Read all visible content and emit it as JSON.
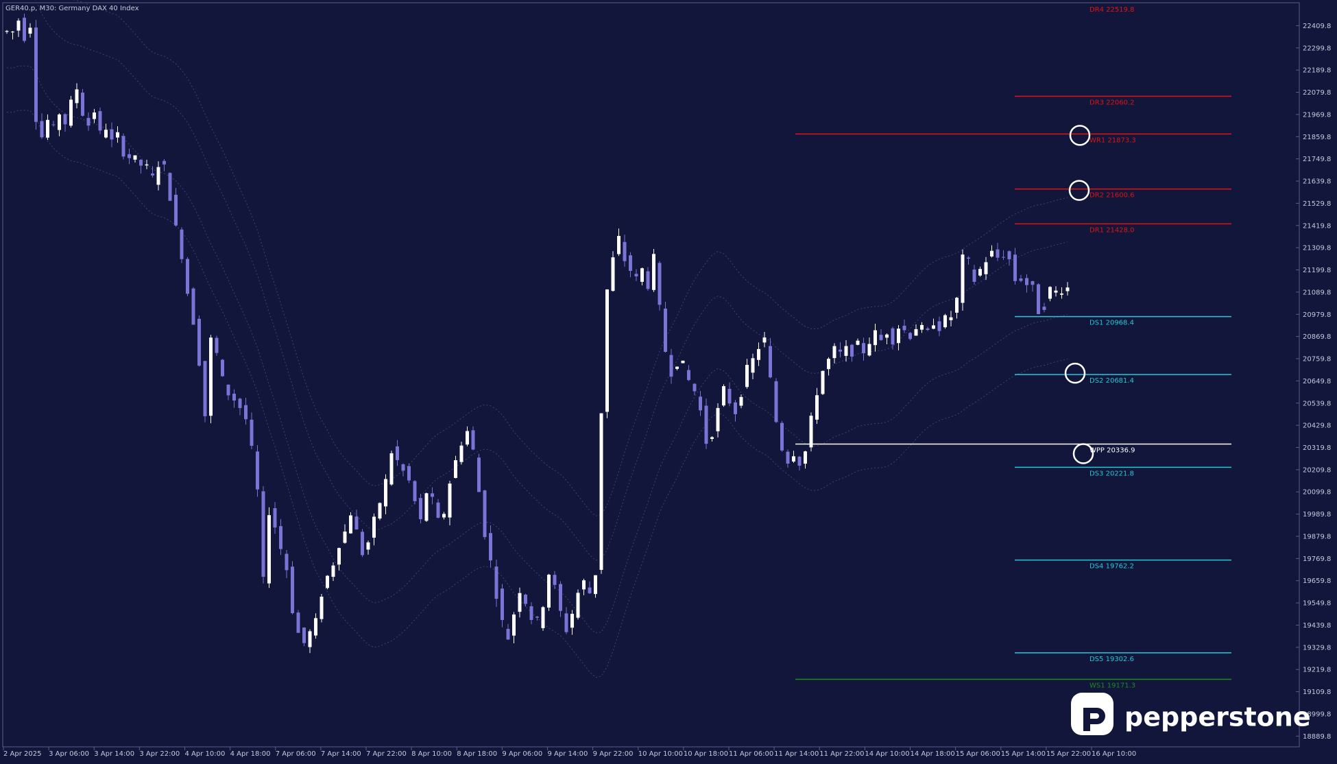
{
  "header": {
    "title": "GER40.p, M30:  Germany DAX 40 Index"
  },
  "brand": {
    "name": "pepperstone"
  },
  "colors": {
    "background": "#12163a",
    "frame": "#5a5f86",
    "axis_text": "#c8cadc",
    "bull_candle": "#ffffff",
    "bear_candle": "#7b73d6",
    "envelope": "#3d4475",
    "resistance": "#e01414",
    "support": "#22c9d6",
    "pivot": "#ffffff",
    "weekly_support": "#1f8a1f"
  },
  "chart_data": {
    "type": "candlestick",
    "symbol": "GER40.p",
    "timeframe": "M30",
    "instrument": "Germany DAX 40 Index",
    "x_tick_labels": [
      "2 Apr 2025",
      "3 Apr 06:00",
      "3 Apr 14:00",
      "3 Apr 22:00",
      "4 Apr 10:00",
      "4 Apr 18:00",
      "7 Apr 06:00",
      "7 Apr 14:00",
      "7 Apr 22:00",
      "8 Apr 10:00",
      "8 Apr 18:00",
      "9 Apr 06:00",
      "9 Apr 14:00",
      "9 Apr 22:00",
      "10 Apr 10:00",
      "10 Apr 18:00",
      "11 Apr 06:00",
      "11 Apr 14:00",
      "11 Apr 22:00",
      "14 Apr 10:00",
      "14 Apr 18:00",
      "15 Apr 06:00",
      "15 Apr 14:00",
      "15 Apr 22:00",
      "16 Apr 10:00"
    ],
    "y_tick_labels": [
      "22409.8",
      "22299.8",
      "22189.8",
      "22079.8",
      "21969.8",
      "21859.8",
      "21749.8",
      "21639.8",
      "21529.8",
      "21419.8",
      "21309.8",
      "21199.8",
      "21089.8",
      "20979.8",
      "20869.8",
      "20759.8",
      "20649.8",
      "20539.8",
      "20429.8",
      "20319.8",
      "20209.8",
      "20099.8",
      "19989.8",
      "19879.8",
      "19769.8",
      "19659.8",
      "19549.8",
      "19439.8",
      "19329.8",
      "19219.8",
      "19109.8",
      "18999.8",
      "18889.8"
    ],
    "ylim": [
      18840,
      22520
    ],
    "price_path": [
      [
        0,
        22380
      ],
      [
        2,
        22380
      ],
      [
        3,
        22440
      ],
      [
        4,
        22360
      ],
      [
        5,
        22420
      ],
      [
        6,
        21960
      ],
      [
        7,
        21860
      ],
      [
        8,
        21940
      ],
      [
        9,
        21890
      ],
      [
        10,
        21980
      ],
      [
        11,
        21930
      ],
      [
        12,
        22020
      ],
      [
        13,
        22100
      ],
      [
        14,
        21980
      ],
      [
        15,
        21920
      ],
      [
        16,
        21990
      ],
      [
        17,
        21870
      ],
      [
        18,
        21910
      ],
      [
        19,
        21830
      ],
      [
        20,
        21860
      ],
      [
        21,
        21790
      ],
      [
        22,
        21760
      ],
      [
        23,
        21740
      ],
      [
        24,
        21720
      ],
      [
        25,
        21700
      ],
      [
        26,
        21650
      ],
      [
        27,
        21730
      ],
      [
        28,
        21700
      ],
      [
        29,
        21570
      ],
      [
        30,
        21400
      ],
      [
        31,
        21280
      ],
      [
        32,
        21090
      ],
      [
        33,
        20950
      ],
      [
        34,
        20750
      ],
      [
        35,
        20480
      ],
      [
        36,
        20850
      ],
      [
        37,
        20780
      ],
      [
        38,
        20650
      ],
      [
        39,
        20590
      ],
      [
        40,
        20560
      ],
      [
        41,
        20520
      ],
      [
        42,
        20460
      ],
      [
        43,
        20300
      ],
      [
        44,
        20100
      ],
      [
        45,
        19650
      ],
      [
        46,
        20010
      ],
      [
        47,
        19930
      ],
      [
        48,
        19820
      ],
      [
        49,
        19720
      ],
      [
        50,
        19520
      ],
      [
        51,
        19400
      ],
      [
        52,
        19350
      ],
      [
        53,
        19400
      ],
      [
        54,
        19450
      ],
      [
        55,
        19600
      ],
      [
        56,
        19680
      ],
      [
        57,
        19750
      ],
      [
        58,
        19850
      ],
      [
        59,
        19900
      ],
      [
        60,
        20000
      ],
      [
        61,
        19900
      ],
      [
        62,
        19800
      ],
      [
        63,
        19850
      ],
      [
        64,
        19950
      ],
      [
        65,
        20050
      ],
      [
        66,
        20150
      ],
      [
        67,
        20300
      ],
      [
        68,
        20250
      ],
      [
        69,
        20200
      ],
      [
        70,
        20150
      ],
      [
        71,
        20050
      ],
      [
        72,
        19950
      ],
      [
        73,
        20100
      ],
      [
        74,
        20050
      ],
      [
        75,
        19950
      ],
      [
        76,
        20000
      ],
      [
        77,
        20150
      ],
      [
        78,
        20250
      ],
      [
        79,
        20350
      ],
      [
        80,
        20400
      ],
      [
        81,
        20300
      ],
      [
        82,
        20100
      ],
      [
        83,
        19900
      ],
      [
        84,
        19750
      ],
      [
        85,
        19600
      ],
      [
        86,
        19450
      ],
      [
        87,
        19380
      ],
      [
        88,
        19500
      ],
      [
        89,
        19620
      ],
      [
        90,
        19560
      ],
      [
        91,
        19480
      ],
      [
        92,
        19450
      ],
      [
        93,
        19550
      ],
      [
        94,
        19700
      ],
      [
        95,
        19620
      ],
      [
        96,
        19500
      ],
      [
        97,
        19420
      ],
      [
        98,
        19500
      ],
      [
        99,
        19600
      ],
      [
        100,
        19650
      ],
      [
        101,
        19600
      ],
      [
        102,
        19700
      ],
      [
        103,
        20500
      ],
      [
        104,
        21100
      ],
      [
        105,
        21250
      ],
      [
        106,
        21350
      ],
      [
        107,
        21250
      ],
      [
        108,
        21200
      ],
      [
        109,
        21150
      ],
      [
        110,
        21200
      ],
      [
        111,
        21130
      ],
      [
        112,
        21250
      ],
      [
        113,
        21000
      ],
      [
        114,
        20800
      ],
      [
        115,
        20700
      ],
      [
        116,
        20750
      ],
      [
        117,
        20720
      ],
      [
        118,
        20650
      ],
      [
        119,
        20600
      ],
      [
        120,
        20500
      ],
      [
        121,
        20350
      ],
      [
        122,
        20400
      ],
      [
        123,
        20500
      ],
      [
        124,
        20600
      ],
      [
        125,
        20550
      ],
      [
        126,
        20500
      ],
      [
        127,
        20600
      ],
      [
        128,
        20700
      ],
      [
        129,
        20750
      ],
      [
        130,
        20820
      ],
      [
        131,
        20850
      ],
      [
        132,
        20650
      ],
      [
        133,
        20450
      ],
      [
        134,
        20320
      ],
      [
        135,
        20260
      ],
      [
        136,
        20300
      ],
      [
        137,
        20250
      ],
      [
        138,
        20300
      ],
      [
        139,
        20450
      ],
      [
        140,
        20600
      ],
      [
        141,
        20700
      ],
      [
        142,
        20750
      ],
      [
        143,
        20800
      ],
      [
        144,
        20780
      ],
      [
        145,
        20800
      ],
      [
        146,
        20800
      ],
      [
        147,
        20820
      ],
      [
        148,
        20800
      ],
      [
        149,
        20850
      ],
      [
        150,
        20880
      ],
      [
        151,
        20850
      ],
      [
        152,
        20900
      ],
      [
        153,
        20860
      ],
      [
        154,
        20920
      ],
      [
        155,
        20900
      ],
      [
        156,
        20880
      ],
      [
        157,
        20920
      ],
      [
        158,
        20900
      ],
      [
        159,
        20880
      ],
      [
        160,
        20950
      ],
      [
        161,
        20920
      ],
      [
        162,
        20950
      ],
      [
        163,
        20970
      ],
      [
        164,
        21050
      ],
      [
        165,
        21250
      ],
      [
        166,
        21230
      ],
      [
        167,
        21150
      ],
      [
        168,
        21200
      ],
      [
        169,
        21250
      ],
      [
        170,
        21280
      ],
      [
        171,
        21260
      ],
      [
        172,
        21280
      ],
      [
        173,
        21250
      ],
      [
        174,
        21150
      ],
      [
        175,
        21160
      ],
      [
        176,
        21130
      ],
      [
        177,
        21100
      ],
      [
        178,
        21000
      ],
      [
        179,
        21030
      ],
      [
        180,
        21100
      ],
      [
        181,
        21090
      ],
      [
        182,
        21110
      ]
    ],
    "levels": [
      {
        "label": "DR4 22519.8",
        "value": 22519.8,
        "kind": "resistance"
      },
      {
        "label": "DR3 22060.2",
        "value": 22060.2,
        "kind": "resistance"
      },
      {
        "label": "WR1 21873.3",
        "value": 21873.3,
        "kind": "resistance"
      },
      {
        "label": "DR2 21600.6",
        "value": 21600.6,
        "kind": "resistance"
      },
      {
        "label": "DR1 21428.0",
        "value": 21428.0,
        "kind": "resistance"
      },
      {
        "label": "DS1 20968.4",
        "value": 20968.4,
        "kind": "support"
      },
      {
        "label": "DS2 20681.4",
        "value": 20681.4,
        "kind": "support"
      },
      {
        "label": "WPP 20336.9",
        "value": 20336.9,
        "kind": "pivot"
      },
      {
        "label": "DS3 20221.8",
        "value": 20221.8,
        "kind": "support"
      },
      {
        "label": "DS4 19762.2",
        "value": 19762.2,
        "kind": "support"
      },
      {
        "label": "DS5 19302.6",
        "value": 19302.6,
        "kind": "support"
      },
      {
        "label": "WS1 19171.3",
        "value": 19171.3,
        "kind": "weekly_support"
      }
    ],
    "grid": false,
    "legend": "none"
  }
}
